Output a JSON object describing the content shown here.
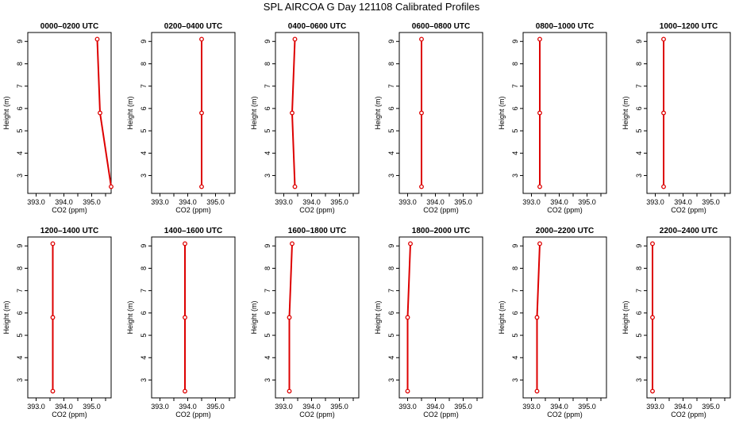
{
  "title": "SPL AIRCOA G  Day 121108  Calibrated Profiles",
  "colors": {
    "series": "#dd0000",
    "axis": "#000000"
  },
  "chart_data": [
    {
      "type": "line",
      "title": "0000–0200 UTC",
      "xlabel": "CO2 (ppm)",
      "ylabel": "Height (m)",
      "xlim": [
        392.7,
        395.7
      ],
      "ylim": [
        2.2,
        9.4
      ],
      "xticks": [
        "393.0",
        "394.0",
        "395.0"
      ],
      "xtick_values": [
        393.0,
        394.0,
        395.0
      ],
      "yticks": [
        "3",
        "4",
        "5",
        "6",
        "7",
        "8",
        "9"
      ],
      "x": [
        395.2,
        395.3,
        395.7
      ],
      "y": [
        9.1,
        5.8,
        2.5
      ]
    },
    {
      "type": "line",
      "title": "0200–0400 UTC",
      "xlabel": "CO2 (ppm)",
      "ylabel": "Height (m)",
      "xlim": [
        392.7,
        395.7
      ],
      "ylim": [
        2.2,
        9.4
      ],
      "xticks": [
        "393.0",
        "394.0",
        "395.0"
      ],
      "xtick_values": [
        393.0,
        394.0,
        395.0
      ],
      "yticks": [
        "3",
        "4",
        "5",
        "6",
        "7",
        "8",
        "9"
      ],
      "x": [
        394.5,
        394.5,
        394.5
      ],
      "y": [
        9.1,
        5.8,
        2.5
      ]
    },
    {
      "type": "line",
      "title": "0400–0600 UTC",
      "xlabel": "CO2 (ppm)",
      "ylabel": "Height (m)",
      "xlim": [
        392.7,
        395.7
      ],
      "ylim": [
        2.2,
        9.4
      ],
      "xticks": [
        "393.0",
        "394.0",
        "395.0"
      ],
      "xtick_values": [
        393.0,
        394.0,
        395.0
      ],
      "yticks": [
        "3",
        "4",
        "5",
        "6",
        "7",
        "8",
        "9"
      ],
      "x": [
        393.4,
        393.3,
        393.4
      ],
      "y": [
        9.1,
        5.8,
        2.5
      ]
    },
    {
      "type": "line",
      "title": "0600–0800 UTC",
      "xlabel": "CO2 (ppm)",
      "ylabel": "Height (m)",
      "xlim": [
        392.7,
        395.7
      ],
      "ylim": [
        2.2,
        9.4
      ],
      "xticks": [
        "393.0",
        "394.0",
        "395.0"
      ],
      "xtick_values": [
        393.0,
        394.0,
        395.0
      ],
      "yticks": [
        "3",
        "4",
        "5",
        "6",
        "7",
        "8",
        "9"
      ],
      "x": [
        393.5,
        393.5,
        393.5
      ],
      "y": [
        9.1,
        5.8,
        2.5
      ]
    },
    {
      "type": "line",
      "title": "0800–1000 UTC",
      "xlabel": "CO2 (ppm)",
      "ylabel": "Height (m)",
      "xlim": [
        392.7,
        395.7
      ],
      "ylim": [
        2.2,
        9.4
      ],
      "xticks": [
        "393.0",
        "394.0",
        "395.0"
      ],
      "xtick_values": [
        393.0,
        394.0,
        395.0
      ],
      "yticks": [
        "3",
        "4",
        "5",
        "6",
        "7",
        "8",
        "9"
      ],
      "x": [
        393.3,
        393.3,
        393.3
      ],
      "y": [
        9.1,
        5.8,
        2.5
      ]
    },
    {
      "type": "line",
      "title": "1000–1200 UTC",
      "xlabel": "CO2 (ppm)",
      "ylabel": "Height (m)",
      "xlim": [
        392.7,
        395.7
      ],
      "ylim": [
        2.2,
        9.4
      ],
      "xticks": [
        "393.0",
        "394.0",
        "395.0"
      ],
      "xtick_values": [
        393.0,
        394.0,
        395.0
      ],
      "yticks": [
        "3",
        "4",
        "5",
        "6",
        "7",
        "8",
        "9"
      ],
      "x": [
        393.3,
        393.3,
        393.3
      ],
      "y": [
        9.1,
        5.8,
        2.5
      ]
    },
    {
      "type": "line",
      "title": "1200–1400 UTC",
      "xlabel": "CO2 (ppm)",
      "ylabel": "Height (m)",
      "xlim": [
        392.7,
        395.7
      ],
      "ylim": [
        2.2,
        9.4
      ],
      "xticks": [
        "393.0",
        "394.0",
        "395.0"
      ],
      "xtick_values": [
        393.0,
        394.0,
        395.0
      ],
      "yticks": [
        "3",
        "4",
        "5",
        "6",
        "7",
        "8",
        "9"
      ],
      "x": [
        393.6,
        393.6,
        393.6
      ],
      "y": [
        9.1,
        5.8,
        2.5
      ]
    },
    {
      "type": "line",
      "title": "1400–1600 UTC",
      "xlabel": "CO2 (ppm)",
      "ylabel": "Height (m)",
      "xlim": [
        392.7,
        395.7
      ],
      "ylim": [
        2.2,
        9.4
      ],
      "xticks": [
        "393.0",
        "394.0",
        "395.0"
      ],
      "xtick_values": [
        393.0,
        394.0,
        395.0
      ],
      "yticks": [
        "3",
        "4",
        "5",
        "6",
        "7",
        "8",
        "9"
      ],
      "x": [
        393.9,
        393.9,
        393.9
      ],
      "y": [
        9.1,
        5.8,
        2.5
      ]
    },
    {
      "type": "line",
      "title": "1600–1800 UTC",
      "xlabel": "CO2 (ppm)",
      "ylabel": "Height (m)",
      "xlim": [
        392.7,
        395.7
      ],
      "ylim": [
        2.2,
        9.4
      ],
      "xticks": [
        "393.0",
        "394.0",
        "395.0"
      ],
      "xtick_values": [
        393.0,
        394.0,
        395.0
      ],
      "yticks": [
        "3",
        "4",
        "5",
        "6",
        "7",
        "8",
        "9"
      ],
      "x": [
        393.3,
        393.2,
        393.2
      ],
      "y": [
        9.1,
        5.8,
        2.5
      ]
    },
    {
      "type": "line",
      "title": "1800–2000 UTC",
      "xlabel": "CO2 (ppm)",
      "ylabel": "Height (m)",
      "xlim": [
        392.7,
        395.7
      ],
      "ylim": [
        2.2,
        9.4
      ],
      "xticks": [
        "393.0",
        "394.0",
        "395.0"
      ],
      "xtick_values": [
        393.0,
        394.0,
        395.0
      ],
      "yticks": [
        "3",
        "4",
        "5",
        "6",
        "7",
        "8",
        "9"
      ],
      "x": [
        393.1,
        393.0,
        393.0
      ],
      "y": [
        9.1,
        5.8,
        2.5
      ]
    },
    {
      "type": "line",
      "title": "2000–2200 UTC",
      "xlabel": "CO2 (ppm)",
      "ylabel": "Height (m)",
      "xlim": [
        392.7,
        395.7
      ],
      "ylim": [
        2.2,
        9.4
      ],
      "xticks": [
        "393.0",
        "394.0",
        "395.0"
      ],
      "xtick_values": [
        393.0,
        394.0,
        395.0
      ],
      "yticks": [
        "3",
        "4",
        "5",
        "6",
        "7",
        "8",
        "9"
      ],
      "x": [
        393.3,
        393.2,
        393.2
      ],
      "y": [
        9.1,
        5.8,
        2.5
      ]
    },
    {
      "type": "line",
      "title": "2200–2400 UTC",
      "xlabel": "CO2 (ppm)",
      "ylabel": "Height (m)",
      "xlim": [
        392.7,
        395.7
      ],
      "ylim": [
        2.2,
        9.4
      ],
      "xticks": [
        "393.0",
        "394.0",
        "395.0"
      ],
      "xtick_values": [
        393.0,
        394.0,
        395.0
      ],
      "yticks": [
        "3",
        "4",
        "5",
        "6",
        "7",
        "8",
        "9"
      ],
      "x": [
        392.9,
        392.9,
        392.9
      ],
      "y": [
        9.1,
        5.8,
        2.5
      ]
    }
  ]
}
